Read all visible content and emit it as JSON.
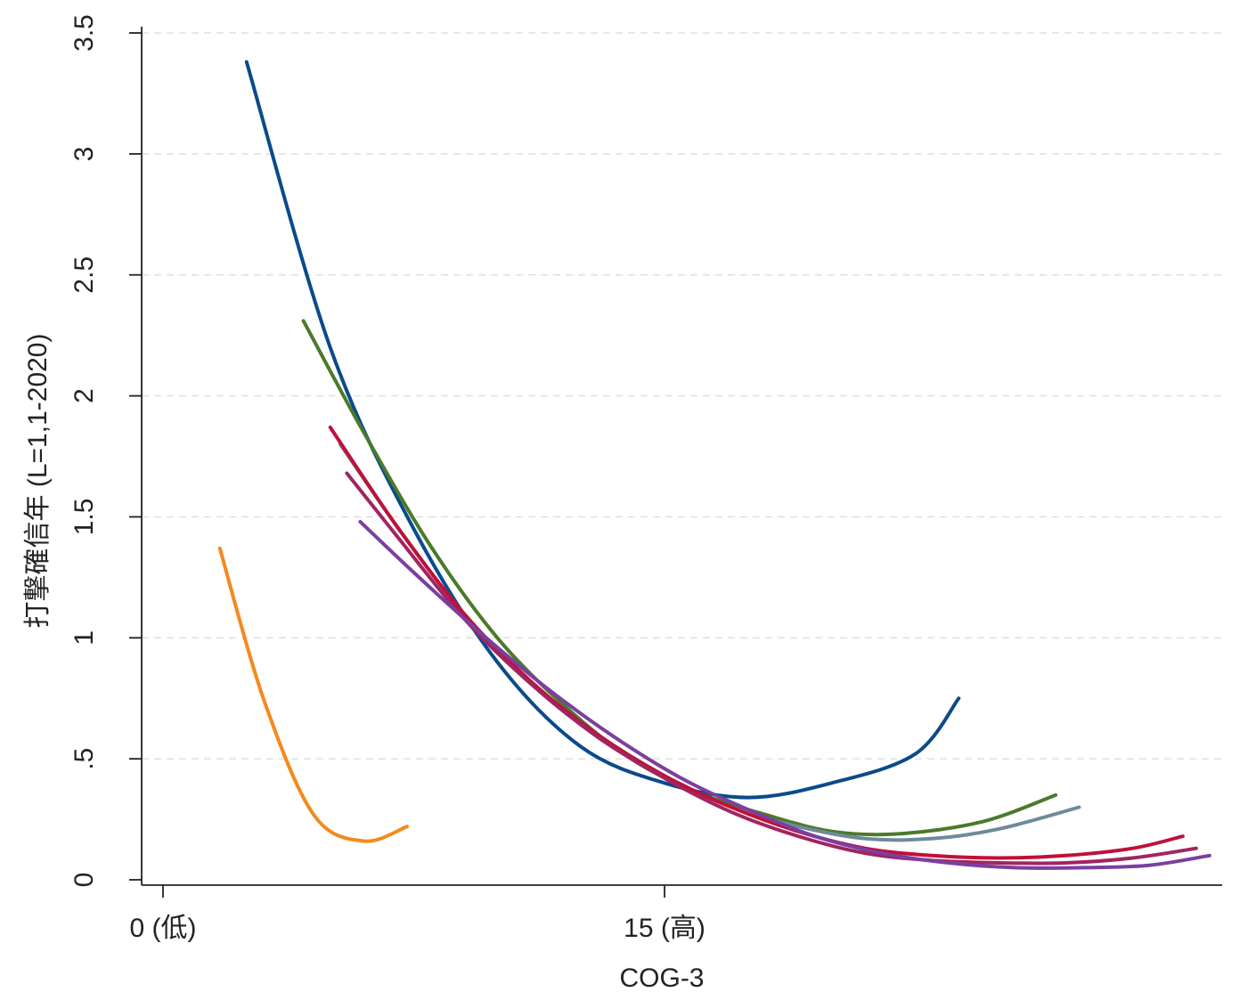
{
  "chart_data": {
    "type": "line",
    "xlabel": "COG-3",
    "ylabel": "打撃確信年 (L=1,1-2020)",
    "xlim": [
      -0.7,
      31.5
    ],
    "ylim": [
      0,
      3.5
    ],
    "x_ticks": [
      {
        "value": 0,
        "label": "0 (低)"
      },
      {
        "value": 15,
        "label": "15 (高)"
      }
    ],
    "y_ticks": [
      {
        "value": 0,
        "label": "0"
      },
      {
        "value": 0.5,
        "label": ".5"
      },
      {
        "value": 1,
        "label": "1"
      },
      {
        "value": 1.5,
        "label": "1.5"
      },
      {
        "value": 2,
        "label": "2"
      },
      {
        "value": 2.5,
        "label": "2.5"
      },
      {
        "value": 3,
        "label": "3"
      },
      {
        "value": 3.5,
        "label": "3.5"
      }
    ],
    "grid": "horizontal dashed",
    "series": [
      {
        "color": "#f28a1e",
        "points": [
          [
            1.7,
            1.37
          ],
          [
            3.0,
            0.75
          ],
          [
            4.5,
            0.27
          ],
          [
            6.0,
            0.16
          ],
          [
            7.3,
            0.22
          ]
        ]
      },
      {
        "color": "#0b4a8c",
        "points": [
          [
            2.5,
            3.38
          ],
          [
            5.0,
            2.2
          ],
          [
            7.5,
            1.45
          ],
          [
            10.0,
            0.9
          ],
          [
            12.5,
            0.55
          ],
          [
            15.0,
            0.4
          ],
          [
            17.5,
            0.34
          ],
          [
            20.0,
            0.4
          ],
          [
            22.5,
            0.52
          ],
          [
            23.8,
            0.75
          ]
        ]
      },
      {
        "color": "#4a7a2a",
        "points": [
          [
            4.2,
            2.31
          ],
          [
            6.0,
            1.85
          ],
          [
            8.0,
            1.38
          ],
          [
            10.0,
            1.0
          ],
          [
            12.0,
            0.72
          ],
          [
            14.0,
            0.5
          ],
          [
            16.0,
            0.36
          ],
          [
            18.0,
            0.27
          ],
          [
            20.0,
            0.2
          ],
          [
            22.0,
            0.19
          ],
          [
            24.5,
            0.24
          ],
          [
            26.7,
            0.35
          ]
        ]
      },
      {
        "color": "#6e8a99",
        "points": [
          [
            5.3,
            1.8
          ],
          [
            7.0,
            1.46
          ],
          [
            9.0,
            1.1
          ],
          [
            11.0,
            0.82
          ],
          [
            13.0,
            0.6
          ],
          [
            15.0,
            0.43
          ],
          [
            17.0,
            0.3
          ],
          [
            19.0,
            0.22
          ],
          [
            21.0,
            0.17
          ],
          [
            23.0,
            0.17
          ],
          [
            25.0,
            0.21
          ],
          [
            27.4,
            0.3
          ]
        ]
      },
      {
        "color": "#c0103a",
        "points": [
          [
            5.0,
            1.87
          ],
          [
            7.0,
            1.46
          ],
          [
            9.0,
            1.1
          ],
          [
            11.0,
            0.82
          ],
          [
            13.0,
            0.6
          ],
          [
            15.0,
            0.43
          ],
          [
            17.0,
            0.3
          ],
          [
            19.0,
            0.2
          ],
          [
            21.0,
            0.13
          ],
          [
            23.0,
            0.1
          ],
          [
            25.0,
            0.09
          ],
          [
            27.0,
            0.1
          ],
          [
            29.0,
            0.13
          ],
          [
            30.5,
            0.18
          ]
        ]
      },
      {
        "color": "#a02560",
        "points": [
          [
            5.5,
            1.68
          ],
          [
            7.0,
            1.42
          ],
          [
            9.0,
            1.08
          ],
          [
            11.0,
            0.81
          ],
          [
            13.0,
            0.59
          ],
          [
            15.0,
            0.42
          ],
          [
            17.0,
            0.28
          ],
          [
            19.0,
            0.18
          ],
          [
            21.0,
            0.11
          ],
          [
            23.0,
            0.08
          ],
          [
            25.0,
            0.07
          ],
          [
            27.0,
            0.07
          ],
          [
            29.0,
            0.09
          ],
          [
            30.9,
            0.13
          ]
        ]
      },
      {
        "color": "#7b3fa0",
        "points": [
          [
            5.9,
            1.48
          ],
          [
            7.5,
            1.27
          ],
          [
            9.5,
            1.02
          ],
          [
            11.5,
            0.79
          ],
          [
            13.5,
            0.59
          ],
          [
            15.5,
            0.42
          ],
          [
            17.5,
            0.29
          ],
          [
            19.5,
            0.18
          ],
          [
            21.5,
            0.11
          ],
          [
            23.5,
            0.07
          ],
          [
            25.5,
            0.05
          ],
          [
            27.5,
            0.05
          ],
          [
            29.5,
            0.06
          ],
          [
            31.3,
            0.1
          ]
        ]
      }
    ]
  }
}
